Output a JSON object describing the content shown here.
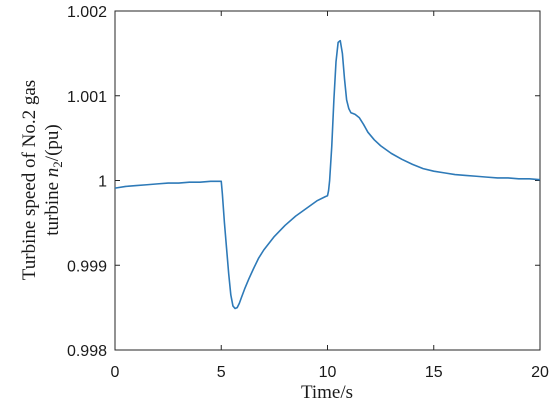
{
  "chart_data": {
    "type": "line",
    "title": "",
    "xlabel": "Time/s",
    "ylabel_line1": "Turbine speed of No.2 gas",
    "ylabel_line2_prefix": "turbine ",
    "ylabel_symbol": "n",
    "ylabel_subscript": "2",
    "ylabel_suffix": "/(pu)",
    "xlim": [
      0,
      20
    ],
    "ylim": [
      0.998,
      1.002
    ],
    "xticks": [
      0,
      5,
      10,
      15,
      20
    ],
    "xtick_labels": [
      "0",
      "5",
      "10",
      "15",
      "20"
    ],
    "yticks": [
      0.998,
      0.999,
      1,
      1.001,
      1.002
    ],
    "ytick_labels": [
      "0.998",
      "0.999",
      "1",
      "1.001",
      "1.002"
    ],
    "grid": false,
    "line_color": "#2e7ab8",
    "series": [
      {
        "x": [
          0,
          0.5,
          1,
          1.5,
          2,
          2.5,
          3,
          3.5,
          4,
          4.5,
          5,
          5.05,
          5.15,
          5.25,
          5.35,
          5.45,
          5.55,
          5.65,
          5.75,
          5.85,
          5.95,
          6.1,
          6.3,
          6.5,
          6.75,
          7,
          7.5,
          8,
          8.5,
          9,
          9.5,
          9.9,
          10,
          10.05,
          10.1,
          10.2,
          10.3,
          10.4,
          10.5,
          10.6,
          10.7,
          10.8,
          10.9,
          11,
          11.1,
          11.2,
          11.3,
          11.5,
          11.7,
          11.9,
          12.2,
          12.5,
          13,
          13.5,
          14,
          14.5,
          15,
          15.5,
          16,
          16.5,
          17,
          17.5,
          18,
          18.5,
          19,
          19.5,
          20
        ],
        "y": [
          0.99991,
          0.99993,
          0.99994,
          0.99995,
          0.99996,
          0.99997,
          0.99997,
          0.99998,
          0.99998,
          0.99999,
          0.99999,
          0.99985,
          0.9995,
          0.9992,
          0.9989,
          0.99865,
          0.99852,
          0.99849,
          0.9985,
          0.99855,
          0.99862,
          0.99872,
          0.99884,
          0.99895,
          0.99908,
          0.99918,
          0.99934,
          0.99947,
          0.99958,
          0.99967,
          0.99976,
          0.99981,
          0.99982,
          0.99988,
          1.0,
          1.0004,
          1.00095,
          1.0014,
          1.00163,
          1.00165,
          1.0015,
          1.0012,
          1.00095,
          1.00085,
          1.0008,
          1.00079,
          1.00078,
          1.00074,
          1.00066,
          1.00057,
          1.00048,
          1.00041,
          1.00032,
          1.00025,
          1.00019,
          1.00014,
          1.00011,
          1.00009,
          1.00007,
          1.00006,
          1.00005,
          1.00004,
          1.00003,
          1.00003,
          1.00002,
          1.00002,
          1.00001
        ]
      }
    ]
  }
}
